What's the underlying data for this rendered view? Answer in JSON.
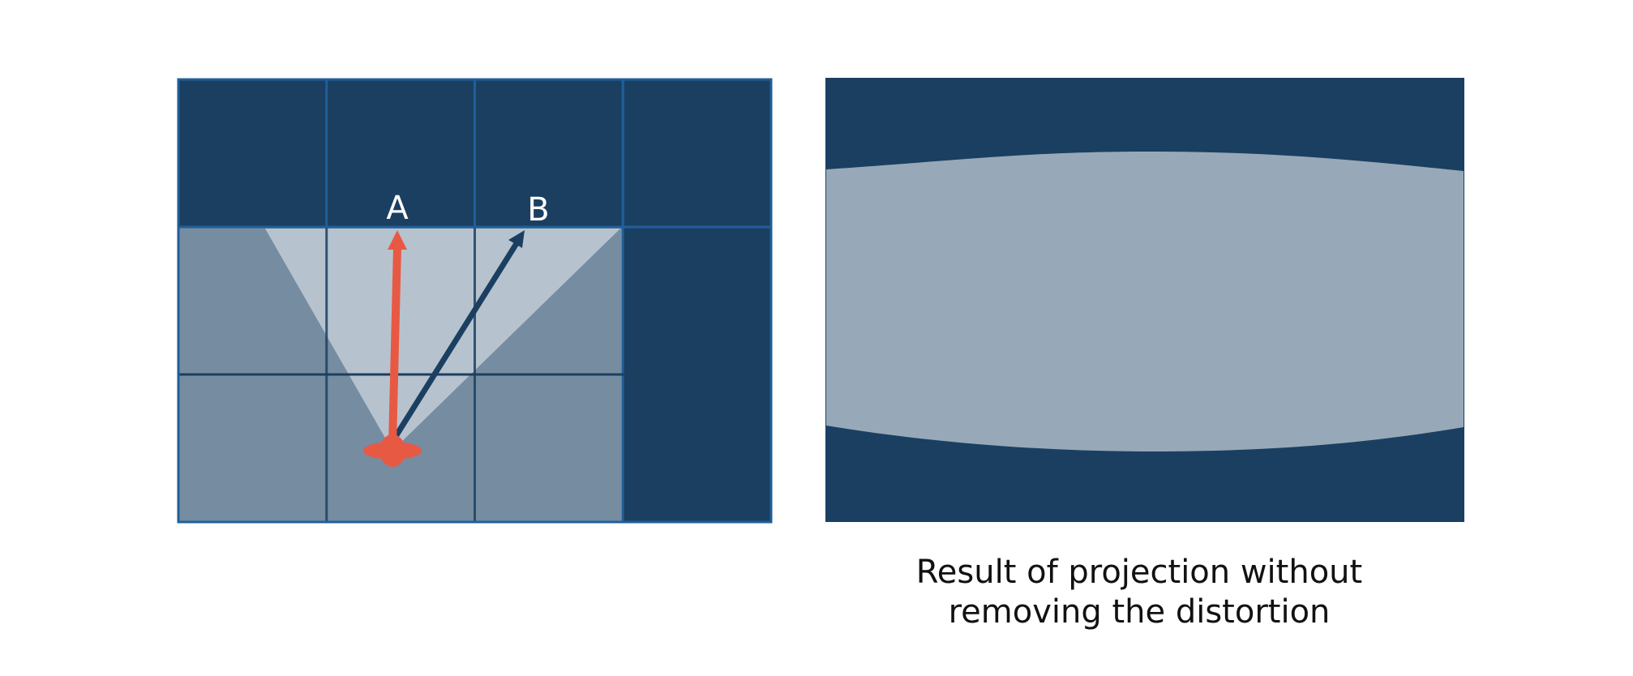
{
  "colors": {
    "background": "#ffffff",
    "wall": "#1b3f61",
    "grid_line": "#1f5f9a",
    "floor": "#768ca1",
    "view_cone": "#c2ccd6",
    "projection_band": "#97a9b8",
    "arrow_a": "#e85944",
    "arrow_b": "#1b3f61",
    "camera": "#e85944",
    "label_text": "#ffffff",
    "caption_text": "#111111"
  },
  "left_diagram": {
    "label_a": "A",
    "label_b": "B",
    "grid": {
      "columns": 4,
      "rows": 3,
      "cells": [
        [
          "wall",
          "wall",
          "wall",
          "wall"
        ],
        [
          "floor",
          "floor",
          "floor",
          "wall"
        ],
        [
          "floor",
          "floor",
          "floor",
          "wall"
        ]
      ]
    },
    "camera_icon": "red-blob-icon",
    "arrow_a_icon": "arrow-up-icon",
    "arrow_b_icon": "arrow-diagonal-icon"
  },
  "right_diagram": {
    "caption_line1": "Result of projection without",
    "caption_line2": "removing the distortion"
  }
}
